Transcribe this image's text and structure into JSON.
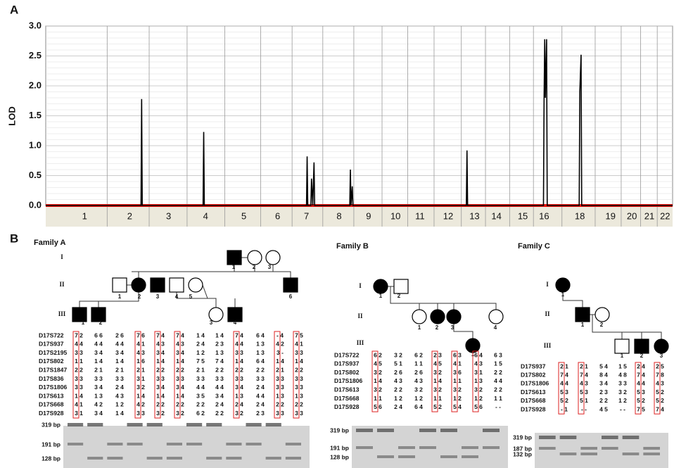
{
  "panel_labels": [
    "A",
    "B"
  ],
  "chart_data": {
    "type": "line",
    "y_label": "LOD",
    "xlim": [
      0,
      100
    ],
    "ylim": [
      0,
      3
    ],
    "yticks": [
      {
        "value": 0,
        "label": "0.0"
      },
      {
        "value": 0.5,
        "label": "0.5"
      },
      {
        "value": 1,
        "label": "1.0"
      },
      {
        "value": 1.5,
        "label": "1.5"
      },
      {
        "value": 2,
        "label": "2.0"
      },
      {
        "value": 2.5,
        "label": "2.5"
      },
      {
        "value": 3,
        "label": "3.0"
      }
    ],
    "xticks": [
      {
        "value": 6.2,
        "label": "1"
      },
      {
        "value": 13.4,
        "label": "2"
      },
      {
        "value": 19.6,
        "label": "3"
      },
      {
        "value": 25.5,
        "label": "4"
      },
      {
        "value": 31.6,
        "label": "5"
      },
      {
        "value": 37,
        "label": "6"
      },
      {
        "value": 41.6,
        "label": "7"
      },
      {
        "value": 46.8,
        "label": "8"
      },
      {
        "value": 51.5,
        "label": "9"
      },
      {
        "value": 55.8,
        "label": "10"
      },
      {
        "value": 59.7,
        "label": "11"
      },
      {
        "value": 64.2,
        "label": "12"
      },
      {
        "value": 68.4,
        "label": "13"
      },
      {
        "value": 71.9,
        "label": "14"
      },
      {
        "value": 76.1,
        "label": "15"
      },
      {
        "value": 79.5,
        "label": "16"
      },
      {
        "value": 85.2,
        "label": "18"
      },
      {
        "value": 90.1,
        "label": "19"
      },
      {
        "value": 93.5,
        "label": "20"
      },
      {
        "value": 96.3,
        "label": "21"
      },
      {
        "value": 98.8,
        "label": "22"
      }
    ],
    "grid": true,
    "series": [
      {
        "name": "LOD",
        "color": "#000000",
        "x": [
          0,
          15.2,
          15.3,
          15.4,
          25.1,
          25.2,
          25.3,
          41.6,
          41.7,
          41.8,
          42.3,
          42.4,
          42.6,
          42.8,
          42.9,
          48.5,
          48.6,
          48.7,
          48.9,
          49.0,
          67.1,
          67.2,
          67.3,
          79.4,
          79.5,
          79.6,
          79.7,
          79.9,
          80.0,
          85.1,
          85.2,
          85.4,
          85.5,
          100
        ],
        "values": [
          0,
          0,
          1.78,
          0,
          0,
          1.23,
          0,
          0,
          0.82,
          0,
          0,
          0.45,
          0,
          0.72,
          0,
          0,
          0.6,
          0,
          0.32,
          0,
          0,
          0.92,
          0,
          0,
          1.78,
          2.78,
          1.8,
          2.78,
          0,
          0,
          1.9,
          2.52,
          0,
          0
        ]
      }
    ],
    "baseline_color": "#e8140f"
  },
  "families": [
    {
      "title": "Family A",
      "generations": [
        "I",
        "II",
        "III"
      ],
      "individuals": [
        "1",
        "2",
        "3",
        "1",
        "2",
        "3",
        "4",
        "5",
        "6",
        "1",
        "2",
        "3",
        "4"
      ],
      "markers": [
        "D17S722",
        "D17S937",
        "D17S2195",
        "D17S802",
        "D17S1847",
        "D17S836",
        "D17S1806",
        "D17S613",
        "D17S668",
        "D17S928"
      ],
      "genotypes": [
        [
          "7 2",
          "6 6",
          "2 6",
          "7 6",
          "7 4",
          "7 4",
          "1 4",
          "1 4",
          "7 4",
          "6 4",
          "- 4",
          "7 5"
        ],
        [
          "4 4",
          "4 4",
          "4 4",
          "4 1",
          "4 3",
          "4 3",
          "2 4",
          "2 3",
          "4 4",
          "1 3",
          "4 2",
          "4 1"
        ],
        [
          "3 3",
          "3 4",
          "3 4",
          "4 3",
          "3 4",
          "3 4",
          "1 2",
          "1 3",
          "3 3",
          "1 3",
          "3 -",
          "3 3"
        ],
        [
          "1 1",
          "1 4",
          "1 4",
          "1 6",
          "1 4",
          "1 4",
          "7 5",
          "7 4",
          "1 4",
          "6 4",
          "1 4",
          "1 4"
        ],
        [
          "2 2",
          "2 1",
          "2 1",
          "2 1",
          "2 2",
          "2 2",
          "2 1",
          "2 2",
          "2 2",
          "2 2",
          "2 1",
          "2 2"
        ],
        [
          "3 3",
          "3 3",
          "3 3",
          "3 1",
          "3 3",
          "3 3",
          "3 3",
          "3 3",
          "3 3",
          "3 3",
          "3 3",
          "3 3"
        ],
        [
          "3 3",
          "3 4",
          "2 4",
          "3 2",
          "3 4",
          "3 4",
          "4 4",
          "4 4",
          "3 4",
          "2 4",
          "3 3",
          "3 3"
        ],
        [
          "1 4",
          "1 3",
          "4 3",
          "1 4",
          "1 4",
          "1 4",
          "3 5",
          "3 4",
          "1 3",
          "4 4",
          "1 3",
          "1 3"
        ],
        [
          "4 1",
          "4 2",
          "1 2",
          "4 2",
          "2 2",
          "2 2",
          "2 2",
          "2 4",
          "2 4",
          "2 4",
          "2 2",
          "2 2"
        ],
        [
          "3 1",
          "3 4",
          "1 4",
          "3 3",
          "3 2",
          "3 2",
          "6 2",
          "2 2",
          "3 2",
          "2 3",
          "3 3",
          "3 3"
        ]
      ],
      "band_sizes": [
        "319 bp",
        "191 bp",
        "128 bp"
      ]
    },
    {
      "title": "Family B",
      "generations": [
        "I",
        "II",
        "III"
      ],
      "individuals": [
        "1",
        "2",
        "1",
        "2",
        "3",
        "4",
        "1"
      ],
      "markers": [
        "D17S722",
        "D17S937",
        "D17S802",
        "D17S1806",
        "D17S613",
        "D17S668",
        "D17S928"
      ],
      "genotypes": [
        [
          "6 2",
          "3 2",
          "6 2",
          "2 3",
          "6 3",
          "6 4",
          "6 3"
        ],
        [
          "4 5",
          "5 1",
          "1 1",
          "4 5",
          "4 1",
          "4 3",
          "1 5"
        ],
        [
          "3 2",
          "2 6",
          "2 6",
          "3 2",
          "3 6",
          "3 1",
          "2 2"
        ],
        [
          "1 4",
          "4 3",
          "4 3",
          "1 4",
          "1 1",
          "1 3",
          "4 4"
        ],
        [
          "3 2",
          "2 2",
          "3 2",
          "3 2",
          "3 2",
          "3 2",
          "2 2"
        ],
        [
          "1 1",
          "1 2",
          "1 2",
          "1 1",
          "1 2",
          "1 2",
          "1 1"
        ],
        [
          "5 6",
          "2 4",
          "6 4",
          "5 2",
          "5 4",
          "5 6",
          "- -"
        ]
      ],
      "band_sizes": [
        "319 bp",
        "191 bp",
        "128 bp"
      ]
    },
    {
      "title": "Family C",
      "generations": [
        "I",
        "II",
        "III"
      ],
      "individuals": [
        "1",
        "1",
        "2",
        "1",
        "2",
        "3"
      ],
      "markers": [
        "D17S937",
        "D17S802",
        "D17S1806",
        "D17S613",
        "D17S668",
        "D17S928"
      ],
      "genotypes": [
        [
          "2 1",
          "2 1",
          "5 4",
          "1 5",
          "2 4",
          "2 5"
        ],
        [
          "7 4",
          "7 4",
          "8 4",
          "4 8",
          "7 4",
          "7 8"
        ],
        [
          "4 4",
          "4 3",
          "3 4",
          "3 3",
          "4 4",
          "4 3"
        ],
        [
          "5 3",
          "5 3",
          "2 3",
          "3 2",
          "5 3",
          "5 2"
        ],
        [
          "5 2",
          "5 1",
          "2 2",
          "1 2",
          "5 2",
          "5 2"
        ],
        [
          "- 1",
          "- -",
          "4 5",
          "- -",
          "7 5",
          "7 4"
        ]
      ],
      "band_sizes": [
        "319 bp",
        "187 bp",
        "132 bp"
      ]
    }
  ]
}
